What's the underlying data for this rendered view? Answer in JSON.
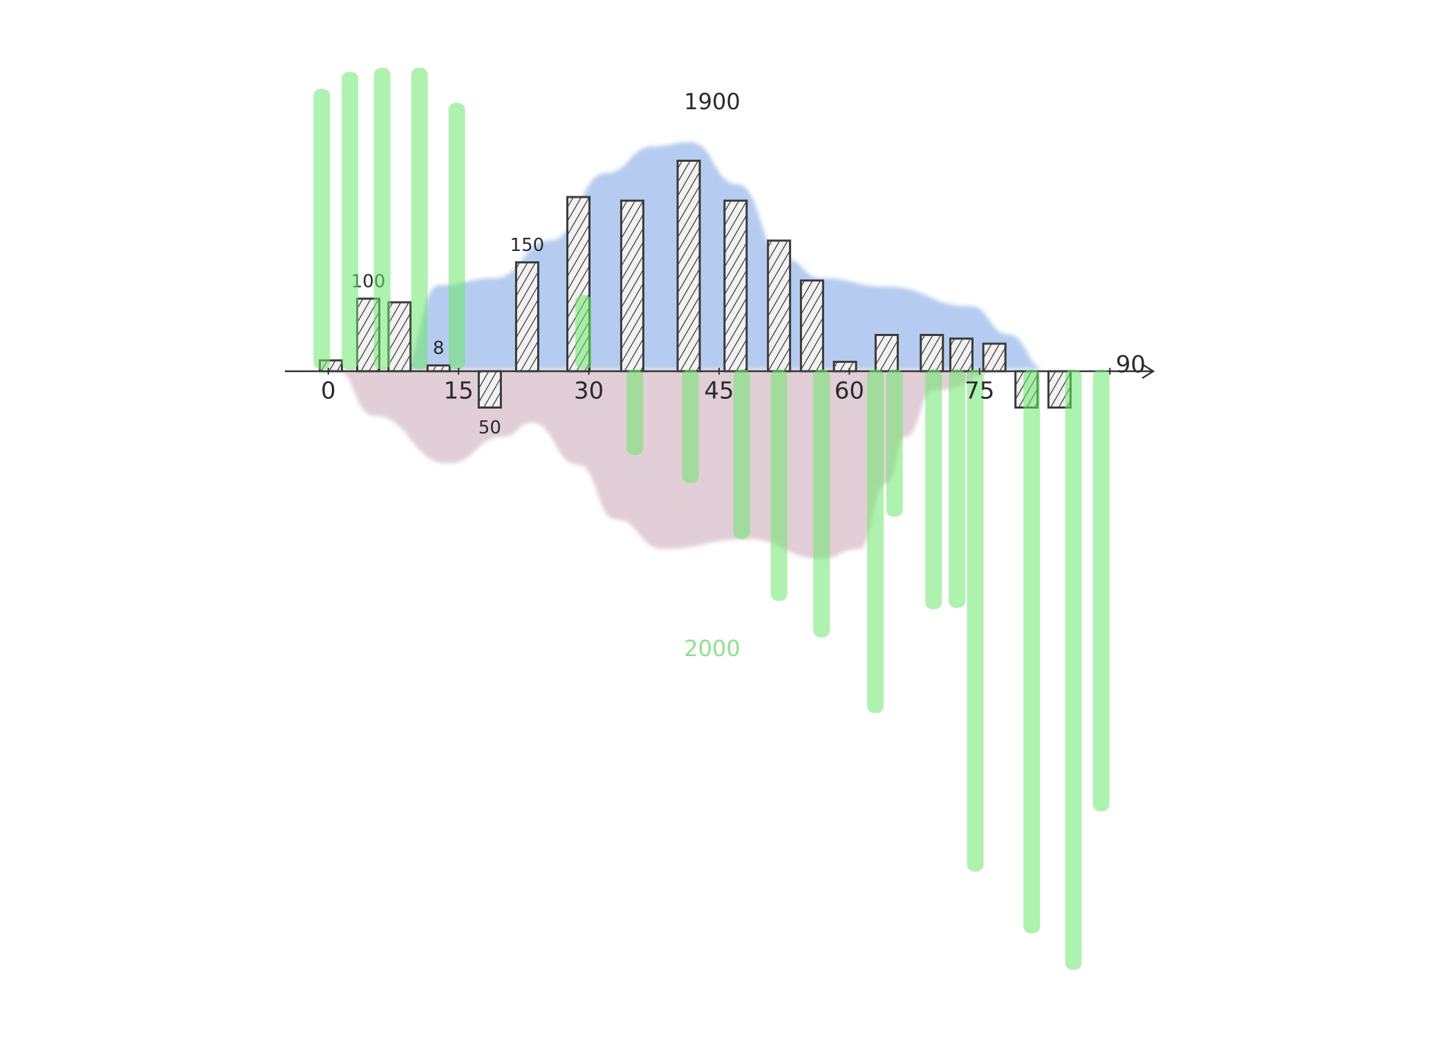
{
  "chart_data": {
    "type": "bar",
    "xlim": [
      -5,
      95
    ],
    "xticks": [
      0,
      15,
      30,
      45,
      60,
      75,
      90
    ],
    "ylim": [
      -840,
      420
    ],
    "y2lim": [
      -4360,
      2160
    ],
    "y2ticks": [
      {
        "value": -2000,
        "label": "2000"
      },
      1900
    ],
    "series": [
      {
        "type": "area",
        "axis": "y2",
        "color": "#a9c4ee",
        "x": [
          8.4,
          12.7,
          19.1,
          25.6,
          32,
          37.4,
          41.7,
          47.1,
          52.5,
          56.8,
          64.3,
          74,
          78.3,
          82.6
        ],
        "values": [
          0,
          600,
          650,
          920,
          1400,
          1590,
          1620,
          1320,
          790,
          650,
          590,
          450,
          250,
          0
        ]
      },
      {
        "type": "area",
        "axis": "y2",
        "color": "#dcc6cf",
        "x": [
          0.9,
          5.2,
          13.8,
          20.2,
          23.4,
          28.8,
          33.1,
          38.5,
          48.2,
          56.8,
          61.1,
          64.3,
          66.5,
          69.7,
          78.3
        ],
        "values": [
          0,
          -330,
          -670,
          -480,
          -380,
          -680,
          -1070,
          -1280,
          -1210,
          -1350,
          -1280,
          -810,
          -480,
          -150,
          0
        ]
      },
      {
        "type": "bar",
        "color": "#3a3a3a",
        "x": [
          0.3,
          4.6,
          8.2,
          12.7,
          18.6,
          22.9,
          28.8,
          35,
          41.5,
          46.9,
          51.9,
          55.7,
          59.5,
          64.3,
          69.5,
          72.9,
          76.7,
          80.4,
          84.2
        ],
        "values": [
          15,
          100,
          95,
          8,
          -50,
          150,
          240,
          235,
          290,
          235,
          180,
          125,
          13,
          50,
          50,
          45,
          38,
          -50,
          -50
        ],
        "value_labels": [
          null,
          "100",
          null,
          "8",
          "50",
          "150",
          null,
          null,
          null,
          null,
          null,
          null,
          null,
          null,
          null,
          null,
          null,
          null,
          null
        ]
      },
      {
        "type": "bar",
        "axis": "y2",
        "color": "#6ee86e",
        "x": [
          -0.75,
          2.5,
          6.2,
          10.5,
          14.8,
          29.4,
          35.3,
          41.7,
          47.6,
          51.9,
          56.8,
          63,
          65.2,
          69.7,
          72.4,
          74.5,
          81,
          85.8,
          89
        ],
        "values": [
          2000,
          2120,
          2150,
          2150,
          1900,
          530,
          -610,
          -810,
          -1210,
          -1650,
          -1910,
          -2450,
          -1050,
          -1710,
          -1700,
          -3580,
          -4020,
          -4280,
          -3150
        ]
      }
    ]
  }
}
